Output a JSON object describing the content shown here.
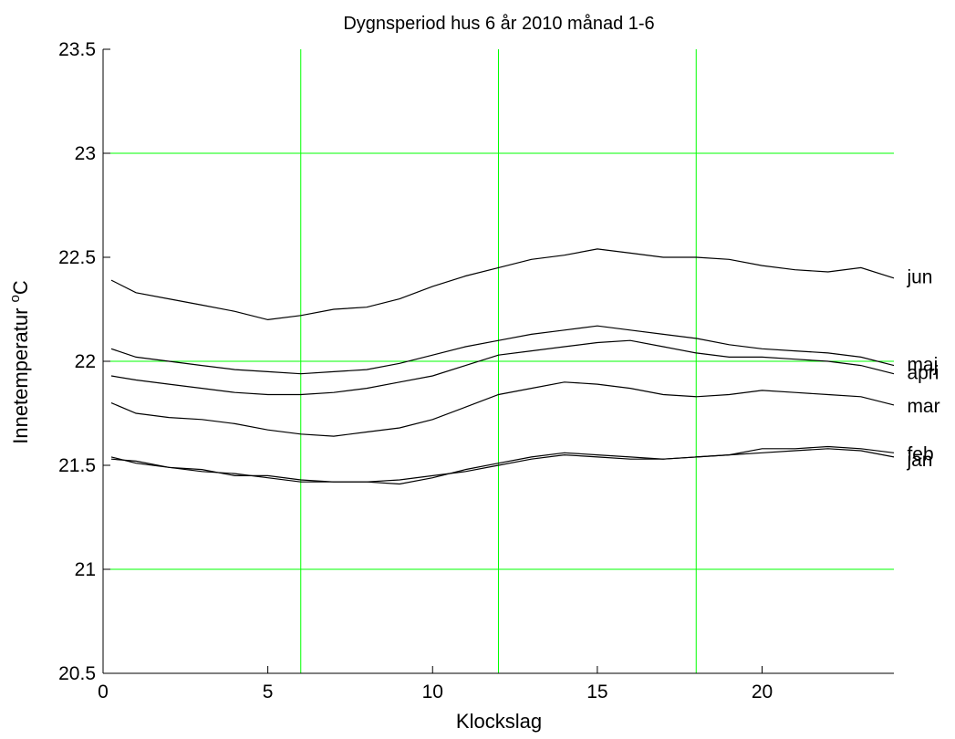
{
  "chart_data": {
    "type": "line",
    "title": "Dygnsperiod  hus 6  år 2010  månad 1-6",
    "xlabel": "Klockslag",
    "ylabel_main": "Innetemperatur ",
    "ylabel_sup": "o",
    "ylabel_unit": "C",
    "xlim": [
      0,
      24
    ],
    "ylim": [
      20.5,
      23.5
    ],
    "grid": {
      "x": [
        6,
        12,
        18
      ],
      "y": [
        21,
        22,
        23
      ],
      "color": "#00ff00"
    },
    "xticks": [
      0,
      5,
      10,
      15,
      20
    ],
    "xtick_labels": [
      "0",
      "5",
      "10",
      "15",
      "20"
    ],
    "yticks": [
      20.5,
      21,
      21.5,
      22,
      22.5,
      23,
      23.5
    ],
    "ytick_labels": [
      "20.5",
      "21",
      "21.5",
      "22",
      "22.5",
      "23",
      "23.5"
    ],
    "line_color": "#000000",
    "series": [
      {
        "name": "jan",
        "x": [
          0.25,
          1,
          2,
          3,
          4,
          5,
          6,
          7,
          8,
          9,
          10,
          11,
          12,
          13,
          14,
          15,
          16,
          17,
          18,
          19,
          20,
          21,
          22,
          23,
          24
        ],
        "values": [
          21.54,
          21.51,
          21.49,
          21.47,
          21.46,
          21.44,
          21.42,
          21.42,
          21.42,
          21.43,
          21.45,
          21.47,
          21.5,
          21.53,
          21.55,
          21.54,
          21.53,
          21.53,
          21.54,
          21.55,
          21.56,
          21.57,
          21.58,
          21.57,
          21.54
        ]
      },
      {
        "name": "feb",
        "x": [
          0.25,
          1,
          2,
          3,
          4,
          5,
          6,
          7,
          8,
          9,
          10,
          11,
          12,
          13,
          14,
          15,
          16,
          17,
          18,
          19,
          20,
          21,
          22,
          23,
          24
        ],
        "values": [
          21.53,
          21.52,
          21.49,
          21.48,
          21.45,
          21.45,
          21.43,
          21.42,
          21.42,
          21.41,
          21.44,
          21.48,
          21.51,
          21.54,
          21.56,
          21.55,
          21.54,
          21.53,
          21.54,
          21.55,
          21.58,
          21.58,
          21.59,
          21.58,
          21.56
        ]
      },
      {
        "name": "mar",
        "x": [
          0.25,
          1,
          2,
          3,
          4,
          5,
          6,
          7,
          8,
          9,
          10,
          11,
          12,
          13,
          14,
          15,
          16,
          17,
          18,
          19,
          20,
          21,
          22,
          23,
          24
        ],
        "values": [
          21.8,
          21.75,
          21.73,
          21.72,
          21.7,
          21.67,
          21.65,
          21.64,
          21.66,
          21.68,
          21.72,
          21.78,
          21.84,
          21.87,
          21.9,
          21.89,
          21.87,
          21.84,
          21.83,
          21.84,
          21.86,
          21.85,
          21.84,
          21.83,
          21.79
        ]
      },
      {
        "name": "apr",
        "x": [
          0.25,
          1,
          2,
          3,
          4,
          5,
          6,
          7,
          8,
          9,
          10,
          11,
          12,
          13,
          14,
          15,
          16,
          17,
          18,
          19,
          20,
          21,
          22,
          23,
          24
        ],
        "values": [
          21.93,
          21.91,
          21.89,
          21.87,
          21.85,
          21.84,
          21.84,
          21.85,
          21.87,
          21.9,
          21.93,
          21.98,
          22.03,
          22.05,
          22.07,
          22.09,
          22.1,
          22.07,
          22.04,
          22.02,
          22.02,
          22.01,
          22.0,
          21.98,
          21.94
        ]
      },
      {
        "name": "maj",
        "x": [
          0.25,
          1,
          2,
          3,
          4,
          5,
          6,
          7,
          8,
          9,
          10,
          11,
          12,
          13,
          14,
          15,
          16,
          17,
          18,
          19,
          20,
          21,
          22,
          23,
          24
        ],
        "values": [
          22.06,
          22.02,
          22.0,
          21.98,
          21.96,
          21.95,
          21.94,
          21.95,
          21.96,
          21.99,
          22.03,
          22.07,
          22.1,
          22.13,
          22.15,
          22.17,
          22.15,
          22.13,
          22.11,
          22.08,
          22.06,
          22.05,
          22.04,
          22.02,
          21.98
        ]
      },
      {
        "name": "jun",
        "x": [
          0.25,
          1,
          2,
          3,
          4,
          5,
          6,
          7,
          8,
          9,
          10,
          11,
          12,
          13,
          14,
          15,
          16,
          17,
          18,
          19,
          20,
          21,
          22,
          23,
          24
        ],
        "values": [
          22.39,
          22.33,
          22.3,
          22.27,
          22.24,
          22.2,
          22.22,
          22.25,
          22.26,
          22.3,
          22.36,
          22.41,
          22.45,
          22.49,
          22.51,
          22.54,
          22.52,
          22.5,
          22.5,
          22.49,
          22.46,
          22.44,
          22.43,
          22.45,
          22.4
        ]
      }
    ],
    "annotations": [
      {
        "text": "jun",
        "x": 24.4,
        "y": 22.41
      },
      {
        "text": "maj",
        "x": 24.4,
        "y": 21.99
      },
      {
        "text": "apri",
        "x": 24.4,
        "y": 21.95
      },
      {
        "text": "mar",
        "x": 24.4,
        "y": 21.79
      },
      {
        "text": "feb",
        "x": 24.4,
        "y": 21.56
      },
      {
        "text": "jan",
        "x": 24.4,
        "y": 21.53
      }
    ]
  }
}
